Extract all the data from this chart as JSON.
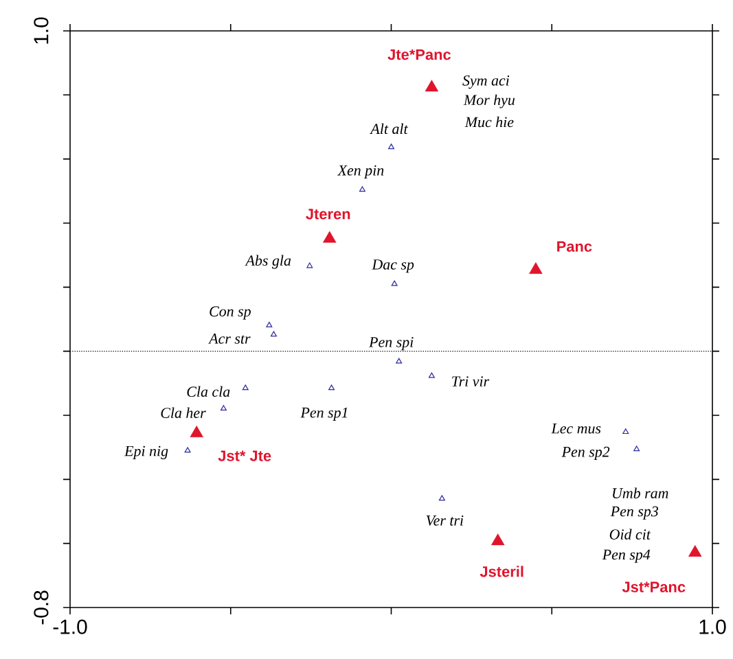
{
  "chart_data": {
    "type": "scatter",
    "xlim": [
      -1.0,
      1.0
    ],
    "ylim": [
      -0.8,
      1.0
    ],
    "xticks": [
      {
        "value": -1.0,
        "label": "-1.0"
      },
      {
        "value": -0.5,
        "label": null
      },
      {
        "value": 0,
        "label": null
      },
      {
        "value": 0.5,
        "label": null
      },
      {
        "value": 1.0,
        "label": "1.0"
      }
    ],
    "yticks": [
      {
        "value": -0.8,
        "label": "-0.8"
      },
      {
        "value": -0.6,
        "label": null
      },
      {
        "value": -0.4,
        "label": null
      },
      {
        "value": -0.2,
        "label": null
      },
      {
        "value": 0,
        "label": null
      },
      {
        "value": 0.2,
        "label": null
      },
      {
        "value": 0.4,
        "label": null
      },
      {
        "value": 0.6,
        "label": null
      },
      {
        "value": 0.8,
        "label": null
      },
      {
        "value": 1.0,
        "label": "1.0"
      }
    ],
    "series": [
      {
        "color": "#2a2a9c",
        "marker": "triangle",
        "x": [
          0.0,
          -0.09,
          -0.254,
          0.01,
          -0.38,
          -0.366,
          0.024,
          0.126,
          -0.454,
          -0.186,
          -0.522,
          -0.634,
          0.73,
          0.764,
          0.158
        ],
        "values": [
          0.637,
          0.504,
          0.266,
          0.21,
          0.081,
          0.052,
          -0.032,
          -0.077,
          -0.115,
          -0.115,
          -0.179,
          -0.31,
          -0.252,
          -0.306,
          -0.46
        ]
      },
      {
        "color": "#e0142c",
        "marker": "triangle",
        "x": [
          0.126,
          -0.192,
          0.45,
          -0.606,
          0.332,
          0.946
        ],
        "values": [
          0.823,
          0.351,
          0.254,
          -0.256,
          -0.593,
          -0.629
        ]
      }
    ],
    "ref_lines": [
      {
        "axis": "y",
        "value": 0,
        "line_style": "dotted",
        "color": "#000000"
      }
    ],
    "annotations": [
      {
        "text": "Alt alt",
        "x": 0.0,
        "y": 0.637
      },
      {
        "text": "Xen pin",
        "x": -0.09,
        "y": 0.504
      },
      {
        "text": "Abs gla",
        "x": -0.254,
        "y": 0.266
      },
      {
        "text": "Dac sp",
        "x": 0.01,
        "y": 0.21
      },
      {
        "text": "Con sp",
        "x": -0.38,
        "y": 0.081
      },
      {
        "text": "Acr str",
        "x": -0.366,
        "y": 0.052
      },
      {
        "text": "Pen spi",
        "x": 0.024,
        "y": -0.032
      },
      {
        "text": "Tri vir",
        "x": 0.126,
        "y": -0.077
      },
      {
        "text": "Cla cla",
        "x": -0.454,
        "y": -0.115
      },
      {
        "text": "Pen sp1",
        "x": -0.186,
        "y": -0.115
      },
      {
        "text": "Cla her",
        "x": -0.522,
        "y": -0.179
      },
      {
        "text": "Epi nig",
        "x": -0.634,
        "y": -0.31
      },
      {
        "text": "Lec mus",
        "x": 0.73,
        "y": -0.252
      },
      {
        "text": "Pen sp2",
        "x": 0.764,
        "y": -0.306
      },
      {
        "text": "Ver tri",
        "x": 0.158,
        "y": -0.46
      },
      "Sym aci",
      "Mor hyu",
      "Muc hie",
      "Umb ram",
      "Pen sp3",
      "Oid cit",
      "Pen sp4",
      {
        "text": "Jte*Panc",
        "x": 0.126,
        "y": 0.823
      },
      {
        "text": "Jteren",
        "x": -0.192,
        "y": 0.351
      },
      {
        "text": "Panc",
        "x": 0.45,
        "y": 0.254
      },
      {
        "text": "Jst* Jte",
        "x": -0.606,
        "y": -0.256
      },
      {
        "text": "Jsteril",
        "x": 0.332,
        "y": -0.593
      },
      {
        "text": "Jst*Panc",
        "x": 0.946,
        "y": -0.629
      }
    ]
  }
}
